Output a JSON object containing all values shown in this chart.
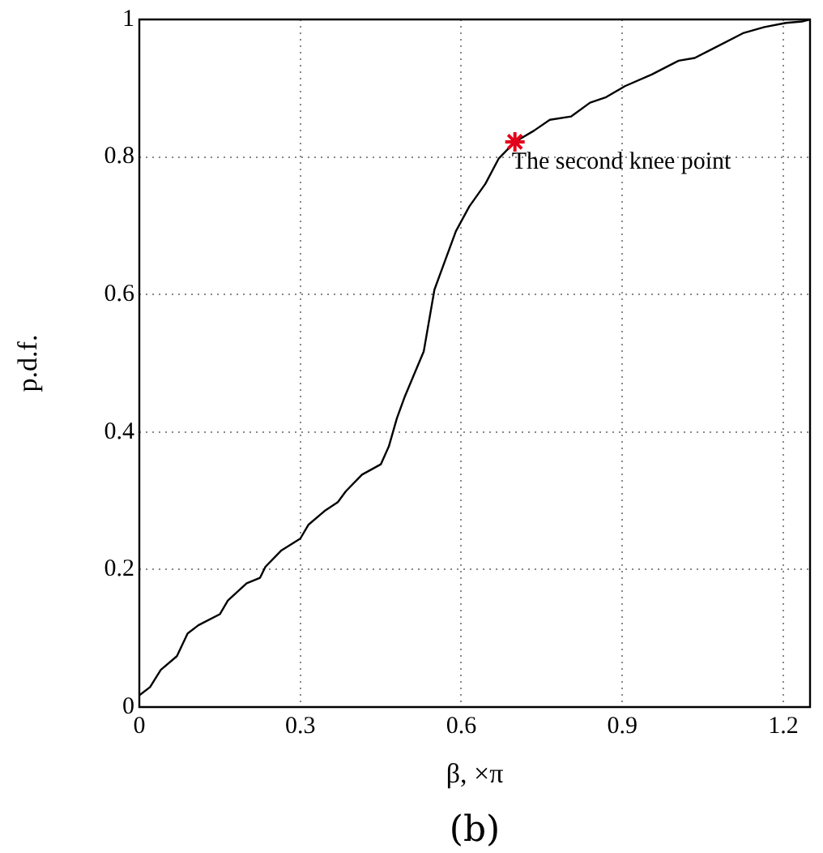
{
  "chart_data": {
    "type": "line",
    "xlabel": "β, ×π",
    "ylabel": "p.d.f.",
    "xlim": [
      0,
      1.25
    ],
    "xticks": [
      0,
      0.3,
      0.6,
      0.9,
      1.2
    ],
    "ylim": [
      0,
      1
    ],
    "yticks": [
      0,
      0.2,
      0.4,
      0.6,
      0.8,
      1
    ],
    "grid": true,
    "legend": false,
    "series": [
      {
        "color": "#000000",
        "marker": "none",
        "line_style": "solid",
        "x": [
          0,
          0.02,
          0.04,
          0.07,
          0.09,
          0.11,
          0.15,
          0.165,
          0.2,
          0.225,
          0.235,
          0.265,
          0.3,
          0.315,
          0.345,
          0.37,
          0.385,
          0.415,
          0.45,
          0.465,
          0.48,
          0.495,
          0.53,
          0.55,
          0.565,
          0.59,
          0.615,
          0.645,
          0.67,
          0.7,
          0.735,
          0.765,
          0.805,
          0.84,
          0.87,
          0.905,
          0.955,
          1.005,
          1.035,
          1.065,
          1.125,
          1.165,
          1.205,
          1.235,
          1.25
        ],
        "values": [
          0.017,
          0.029,
          0.054,
          0.074,
          0.107,
          0.119,
          0.135,
          0.155,
          0.18,
          0.188,
          0.204,
          0.228,
          0.245,
          0.265,
          0.285,
          0.298,
          0.314,
          0.338,
          0.353,
          0.379,
          0.42,
          0.452,
          0.517,
          0.607,
          0.639,
          0.692,
          0.728,
          0.761,
          0.798,
          0.822,
          0.838,
          0.854,
          0.859,
          0.879,
          0.887,
          0.903,
          0.92,
          0.94,
          0.944,
          0.956,
          0.98,
          0.989,
          0.995,
          0.997,
          1
        ]
      },
      {
        "type": "scatter",
        "color": "#e3001b",
        "marker": "cross",
        "x": [
          0.7
        ],
        "values": [
          0.822
        ]
      }
    ],
    "annotations": [
      {
        "text": "The second knee point",
        "x": 0.7,
        "y": 0.822
      },
      "(b)"
    ]
  }
}
